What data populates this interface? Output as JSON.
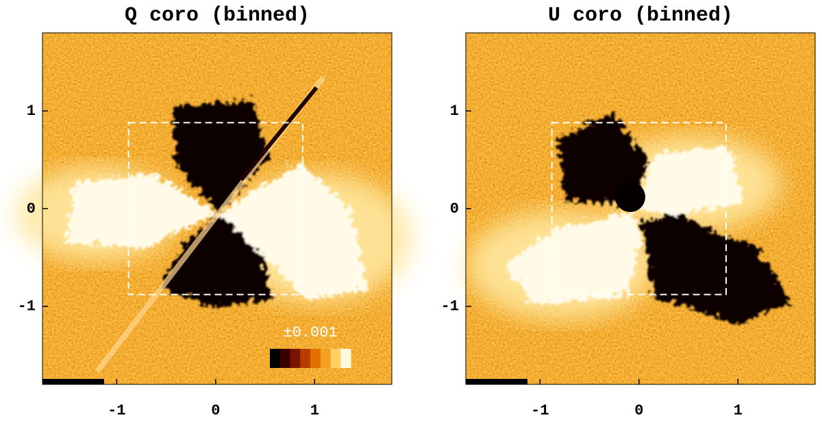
{
  "chart_data": [
    {
      "type": "image",
      "title": "Q coro (binned)",
      "xlim": [
        -1.75,
        1.78
      ],
      "ylim": [
        -1.8,
        1.8
      ],
      "xticks": [
        -1,
        0,
        1
      ],
      "yticks": [
        -1,
        0,
        1
      ],
      "colorbar_label": "±0.001",
      "colorscale": [
        "#000000",
        "#3a0000",
        "#7a1400",
        "#b83c00",
        "#e07000",
        "#f5a020",
        "#ffd060",
        "#fff8e0"
      ]
    },
    {
      "type": "image",
      "title": "U coro (binned)",
      "xlim": [
        -1.75,
        1.78
      ],
      "ylim": [
        -1.8,
        1.8
      ],
      "xticks": [
        -1,
        0,
        1
      ],
      "yticks": [
        -1,
        0,
        1
      ]
    }
  ]
}
